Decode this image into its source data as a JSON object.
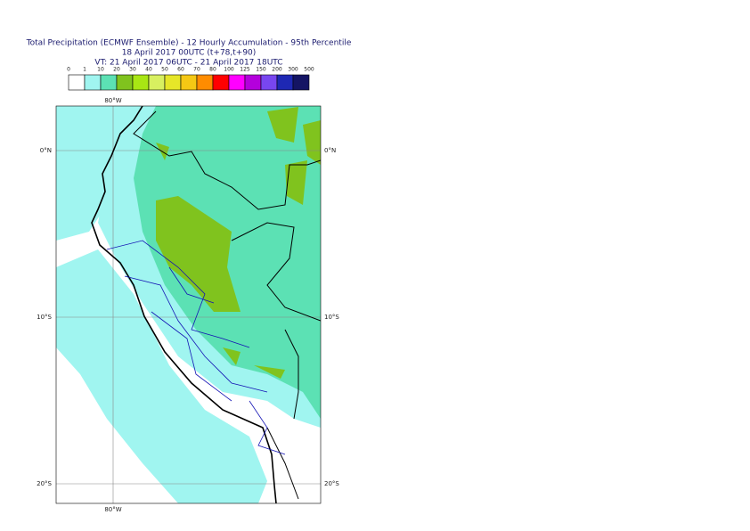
{
  "header": {
    "lines": [
      "Total Precipitation (ECMWF Ensemble) - 12 Hourly Accumulation - 95th Percentile",
      "18 April 2017 00UTC (t+78,t+90)",
      "VT: 21 April 2017 06UTC - 21 April 2017 18UTC"
    ]
  },
  "legend": {
    "labels": [
      "0",
      "1",
      "10",
      "20",
      "30",
      "40",
      "50",
      "60",
      "70",
      "80",
      "100",
      "125",
      "150",
      "200",
      "300",
      "500"
    ],
    "colors": [
      "#ffffff",
      "#a0f5f0",
      "#5ce1b4",
      "#80c31e",
      "#a8e614",
      "#d8f060",
      "#e6e628",
      "#f5c814",
      "#ff8c00",
      "#ff0000",
      "#ff00ff",
      "#b400dc",
      "#7846f0",
      "#1e28b4",
      "#141464"
    ]
  },
  "map": {
    "lon_label": "80°W",
    "lat_labels": [
      "0°N",
      "10°S",
      "20°S"
    ]
  }
}
